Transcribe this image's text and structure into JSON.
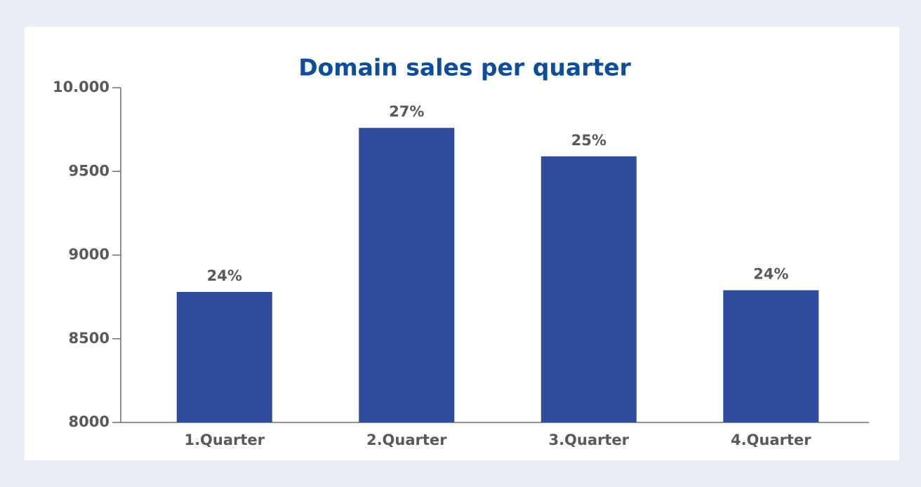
{
  "chart_data": {
    "type": "bar",
    "title": "Domain sales per quarter",
    "categories": [
      "1.Quarter",
      "2.Quarter",
      "3.Quarter",
      "4.Quarter"
    ],
    "values": [
      8780,
      9760,
      9590,
      8790
    ],
    "share_labels": [
      "24%",
      "27%",
      "25%",
      "24%"
    ],
    "color": "#2f4b9b",
    "ylim": [
      8000,
      10000
    ],
    "yticks": [
      8000,
      8500,
      9000,
      9500,
      {
        "value": 10000,
        "label": "10.000"
      }
    ],
    "grid": false
  }
}
